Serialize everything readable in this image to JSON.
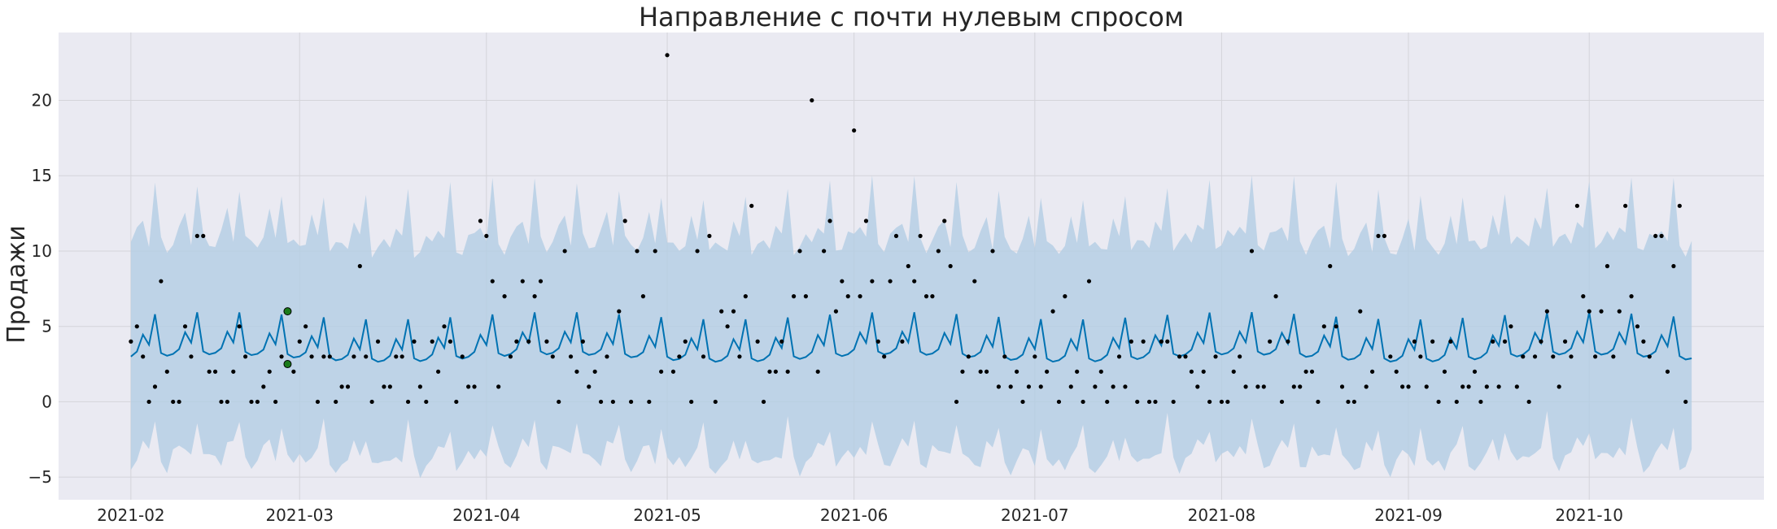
{
  "chart_data": {
    "type": "line",
    "title": "Направление с почти нулевым спросом",
    "xlabel": "",
    "ylabel": "Продажи",
    "x_range": [
      "2021-01-20",
      "2021-10-30"
    ],
    "ylim": [
      -6.5,
      24.5
    ],
    "grid": true,
    "x_ticks": [
      "2021-02",
      "2021-03",
      "2021-04",
      "2021-05",
      "2021-06",
      "2021-07",
      "2021-08",
      "2021-09",
      "2021-10"
    ],
    "y_ticks": [
      -5,
      0,
      5,
      10,
      15,
      20
    ],
    "forecast_range": [
      "2021-02-01",
      "2021-10-18"
    ],
    "weekly_pattern": [
      3.0,
      3.3,
      4.4,
      3.7,
      5.7,
      3.1,
      2.9
    ],
    "upper_weekly_offset": [
      7.2,
      7.4,
      7.8,
      7.4,
      8.8,
      7.3,
      7.0
    ],
    "lower_weekly_offset": [
      6.8,
      7.0,
      7.4,
      7.1,
      7.3,
      6.9,
      7.2
    ],
    "series": [
      {
        "name": "forecast",
        "color": "#0072B2"
      },
      {
        "name": "uncertainty",
        "color": "#b3cde3"
      },
      {
        "name": "observed",
        "color": "#000000"
      },
      {
        "name": "highlighted",
        "color": "#1a7a1a"
      }
    ],
    "observed": [
      [
        "2021-02-01",
        4
      ],
      [
        "2021-02-02",
        5
      ],
      [
        "2021-02-03",
        3
      ],
      [
        "2021-02-04",
        0
      ],
      [
        "2021-02-05",
        1
      ],
      [
        "2021-02-06",
        8
      ],
      [
        "2021-02-07",
        2
      ],
      [
        "2021-02-08",
        0
      ],
      [
        "2021-02-09",
        0
      ],
      [
        "2021-02-10",
        5
      ],
      [
        "2021-02-11",
        3
      ],
      [
        "2021-02-12",
        11
      ],
      [
        "2021-02-13",
        11
      ],
      [
        "2021-02-14",
        2
      ],
      [
        "2021-02-15",
        2
      ],
      [
        "2021-02-16",
        0
      ],
      [
        "2021-02-17",
        0
      ],
      [
        "2021-02-18",
        2
      ],
      [
        "2021-02-19",
        5
      ],
      [
        "2021-02-20",
        3
      ],
      [
        "2021-02-21",
        0
      ],
      [
        "2021-02-22",
        0
      ],
      [
        "2021-02-23",
        1
      ],
      [
        "2021-02-24",
        2
      ],
      [
        "2021-02-25",
        0
      ],
      [
        "2021-02-26",
        3
      ],
      [
        "2021-02-28",
        2
      ],
      [
        "2021-03-01",
        4
      ],
      [
        "2021-03-02",
        5
      ],
      [
        "2021-03-03",
        3
      ],
      [
        "2021-03-04",
        0
      ],
      [
        "2021-03-05",
        3
      ],
      [
        "2021-03-06",
        3
      ],
      [
        "2021-03-07",
        0
      ],
      [
        "2021-03-08",
        1
      ],
      [
        "2021-03-09",
        1
      ],
      [
        "2021-03-10",
        3
      ],
      [
        "2021-03-11",
        9
      ],
      [
        "2021-03-12",
        3
      ],
      [
        "2021-03-13",
        0
      ],
      [
        "2021-03-14",
        4
      ],
      [
        "2021-03-15",
        1
      ],
      [
        "2021-03-16",
        1
      ],
      [
        "2021-03-17",
        3
      ],
      [
        "2021-03-18",
        3
      ],
      [
        "2021-03-19",
        0
      ],
      [
        "2021-03-20",
        4
      ],
      [
        "2021-03-21",
        1
      ],
      [
        "2021-03-22",
        0
      ],
      [
        "2021-03-23",
        4
      ],
      [
        "2021-03-24",
        2
      ],
      [
        "2021-03-25",
        5
      ],
      [
        "2021-03-26",
        4
      ],
      [
        "2021-03-27",
        0
      ],
      [
        "2021-03-28",
        3
      ],
      [
        "2021-03-29",
        1
      ],
      [
        "2021-03-30",
        1
      ],
      [
        "2021-03-31",
        12
      ],
      [
        "2021-04-01",
        11
      ],
      [
        "2021-04-02",
        8
      ],
      [
        "2021-04-03",
        1
      ],
      [
        "2021-04-04",
        7
      ],
      [
        "2021-04-05",
        3
      ],
      [
        "2021-04-06",
        4
      ],
      [
        "2021-04-07",
        8
      ],
      [
        "2021-04-08",
        4
      ],
      [
        "2021-04-09",
        7
      ],
      [
        "2021-04-10",
        8
      ],
      [
        "2021-04-11",
        4
      ],
      [
        "2021-04-12",
        3
      ],
      [
        "2021-04-13",
        0
      ],
      [
        "2021-04-14",
        10
      ],
      [
        "2021-04-15",
        3
      ],
      [
        "2021-04-16",
        2
      ],
      [
        "2021-04-17",
        4
      ],
      [
        "2021-04-18",
        1
      ],
      [
        "2021-04-19",
        2
      ],
      [
        "2021-04-20",
        0
      ],
      [
        "2021-04-21",
        3
      ],
      [
        "2021-04-22",
        0
      ],
      [
        "2021-04-23",
        6
      ],
      [
        "2021-04-24",
        12
      ],
      [
        "2021-04-25",
        0
      ],
      [
        "2021-04-26",
        10
      ],
      [
        "2021-04-27",
        7
      ],
      [
        "2021-04-28",
        0
      ],
      [
        "2021-04-29",
        10
      ],
      [
        "2021-04-30",
        2
      ],
      [
        "2021-05-01",
        23
      ],
      [
        "2021-05-02",
        2
      ],
      [
        "2021-05-03",
        3
      ],
      [
        "2021-05-04",
        4
      ],
      [
        "2021-05-05",
        0
      ],
      [
        "2021-05-06",
        10
      ],
      [
        "2021-05-07",
        3
      ],
      [
        "2021-05-08",
        11
      ],
      [
        "2021-05-09",
        0
      ],
      [
        "2021-05-10",
        6
      ],
      [
        "2021-05-11",
        5
      ],
      [
        "2021-05-12",
        6
      ],
      [
        "2021-05-13",
        3
      ],
      [
        "2021-05-14",
        7
      ],
      [
        "2021-05-15",
        13
      ],
      [
        "2021-05-16",
        4
      ],
      [
        "2021-05-17",
        0
      ],
      [
        "2021-05-18",
        2
      ],
      [
        "2021-05-19",
        2
      ],
      [
        "2021-05-20",
        4
      ],
      [
        "2021-05-21",
        2
      ],
      [
        "2021-05-22",
        7
      ],
      [
        "2021-05-23",
        10
      ],
      [
        "2021-05-24",
        7
      ],
      [
        "2021-05-25",
        20
      ],
      [
        "2021-05-26",
        2
      ],
      [
        "2021-05-27",
        10
      ],
      [
        "2021-05-28",
        12
      ],
      [
        "2021-05-29",
        6
      ],
      [
        "2021-05-30",
        8
      ],
      [
        "2021-05-31",
        7
      ],
      [
        "2021-06-01",
        18
      ],
      [
        "2021-06-02",
        7
      ],
      [
        "2021-06-03",
        12
      ],
      [
        "2021-06-04",
        8
      ],
      [
        "2021-06-05",
        4
      ],
      [
        "2021-06-06",
        3
      ],
      [
        "2021-06-07",
        8
      ],
      [
        "2021-06-08",
        11
      ],
      [
        "2021-06-09",
        4
      ],
      [
        "2021-06-10",
        9
      ],
      [
        "2021-06-11",
        8
      ],
      [
        "2021-06-12",
        11
      ],
      [
        "2021-06-13",
        7
      ],
      [
        "2021-06-14",
        7
      ],
      [
        "2021-06-15",
        10
      ],
      [
        "2021-06-16",
        12
      ],
      [
        "2021-06-17",
        9
      ],
      [
        "2021-06-18",
        0
      ],
      [
        "2021-06-19",
        2
      ],
      [
        "2021-06-20",
        3
      ],
      [
        "2021-06-21",
        8
      ],
      [
        "2021-06-22",
        2
      ],
      [
        "2021-06-23",
        2
      ],
      [
        "2021-06-24",
        10
      ],
      [
        "2021-06-25",
        1
      ],
      [
        "2021-06-26",
        3
      ],
      [
        "2021-06-27",
        1
      ],
      [
        "2021-06-28",
        2
      ],
      [
        "2021-06-29",
        0
      ],
      [
        "2021-06-30",
        1
      ],
      [
        "2021-07-01",
        3
      ],
      [
        "2021-07-02",
        1
      ],
      [
        "2021-07-03",
        2
      ],
      [
        "2021-07-04",
        6
      ],
      [
        "2021-07-05",
        0
      ],
      [
        "2021-07-06",
        7
      ],
      [
        "2021-07-07",
        1
      ],
      [
        "2021-07-08",
        2
      ],
      [
        "2021-07-09",
        0
      ],
      [
        "2021-07-10",
        8
      ],
      [
        "2021-07-11",
        1
      ],
      [
        "2021-07-12",
        2
      ],
      [
        "2021-07-13",
        0
      ],
      [
        "2021-07-14",
        1
      ],
      [
        "2021-07-15",
        3
      ],
      [
        "2021-07-16",
        1
      ],
      [
        "2021-07-17",
        4
      ],
      [
        "2021-07-18",
        0
      ],
      [
        "2021-07-19",
        4
      ],
      [
        "2021-07-20",
        0
      ],
      [
        "2021-07-21",
        0
      ],
      [
        "2021-07-22",
        4
      ],
      [
        "2021-07-23",
        4
      ],
      [
        "2021-07-24",
        0
      ],
      [
        "2021-07-25",
        3
      ],
      [
        "2021-07-26",
        3
      ],
      [
        "2021-07-27",
        2
      ],
      [
        "2021-07-28",
        1
      ],
      [
        "2021-07-29",
        2
      ],
      [
        "2021-07-30",
        0
      ],
      [
        "2021-07-31",
        3
      ],
      [
        "2021-08-01",
        0
      ],
      [
        "2021-08-02",
        0
      ],
      [
        "2021-08-03",
        2
      ],
      [
        "2021-08-04",
        3
      ],
      [
        "2021-08-05",
        1
      ],
      [
        "2021-08-06",
        10
      ],
      [
        "2021-08-07",
        1
      ],
      [
        "2021-08-08",
        1
      ],
      [
        "2021-08-09",
        4
      ],
      [
        "2021-08-10",
        7
      ],
      [
        "2021-08-11",
        0
      ],
      [
        "2021-08-12",
        4
      ],
      [
        "2021-08-13",
        1
      ],
      [
        "2021-08-14",
        1
      ],
      [
        "2021-08-15",
        2
      ],
      [
        "2021-08-16",
        2
      ],
      [
        "2021-08-17",
        0
      ],
      [
        "2021-08-18",
        5
      ],
      [
        "2021-08-19",
        9
      ],
      [
        "2021-08-20",
        5
      ],
      [
        "2021-08-21",
        1
      ],
      [
        "2021-08-22",
        0
      ],
      [
        "2021-08-23",
        0
      ],
      [
        "2021-08-24",
        6
      ],
      [
        "2021-08-25",
        1
      ],
      [
        "2021-08-26",
        2
      ],
      [
        "2021-08-27",
        11
      ],
      [
        "2021-08-28",
        11
      ],
      [
        "2021-08-29",
        3
      ],
      [
        "2021-08-30",
        2
      ],
      [
        "2021-08-31",
        1
      ],
      [
        "2021-09-01",
        1
      ],
      [
        "2021-09-02",
        4
      ],
      [
        "2021-09-03",
        3
      ],
      [
        "2021-09-04",
        1
      ],
      [
        "2021-09-05",
        4
      ],
      [
        "2021-09-06",
        0
      ],
      [
        "2021-09-07",
        2
      ],
      [
        "2021-09-08",
        4
      ],
      [
        "2021-09-09",
        0
      ],
      [
        "2021-09-10",
        1
      ],
      [
        "2021-09-11",
        1
      ],
      [
        "2021-09-12",
        2
      ],
      [
        "2021-09-13",
        0
      ],
      [
        "2021-09-14",
        1
      ],
      [
        "2021-09-15",
        4
      ],
      [
        "2021-09-16",
        1
      ],
      [
        "2021-09-17",
        4
      ],
      [
        "2021-09-18",
        5
      ],
      [
        "2021-09-19",
        1
      ],
      [
        "2021-09-20",
        3
      ],
      [
        "2021-09-21",
        0
      ],
      [
        "2021-09-22",
        3
      ],
      [
        "2021-09-23",
        4
      ],
      [
        "2021-09-24",
        6
      ],
      [
        "2021-09-25",
        3
      ],
      [
        "2021-09-26",
        1
      ],
      [
        "2021-09-27",
        4
      ],
      [
        "2021-09-28",
        3
      ],
      [
        "2021-09-29",
        13
      ],
      [
        "2021-09-30",
        7
      ],
      [
        "2021-10-01",
        6
      ],
      [
        "2021-10-02",
        3
      ],
      [
        "2021-10-03",
        6
      ],
      [
        "2021-10-04",
        9
      ],
      [
        "2021-10-05",
        3
      ],
      [
        "2021-10-06",
        6
      ],
      [
        "2021-10-07",
        13
      ],
      [
        "2021-10-08",
        7
      ],
      [
        "2021-10-09",
        5
      ],
      [
        "2021-10-10",
        4
      ],
      [
        "2021-10-11",
        3
      ],
      [
        "2021-10-12",
        11
      ],
      [
        "2021-10-13",
        11
      ],
      [
        "2021-10-14",
        2
      ],
      [
        "2021-10-15",
        9
      ],
      [
        "2021-10-16",
        13
      ],
      [
        "2021-10-17",
        0
      ]
    ],
    "highlighted_points": [
      [
        "2021-02-27",
        6
      ],
      [
        "2021-02-27",
        2.5
      ]
    ]
  }
}
